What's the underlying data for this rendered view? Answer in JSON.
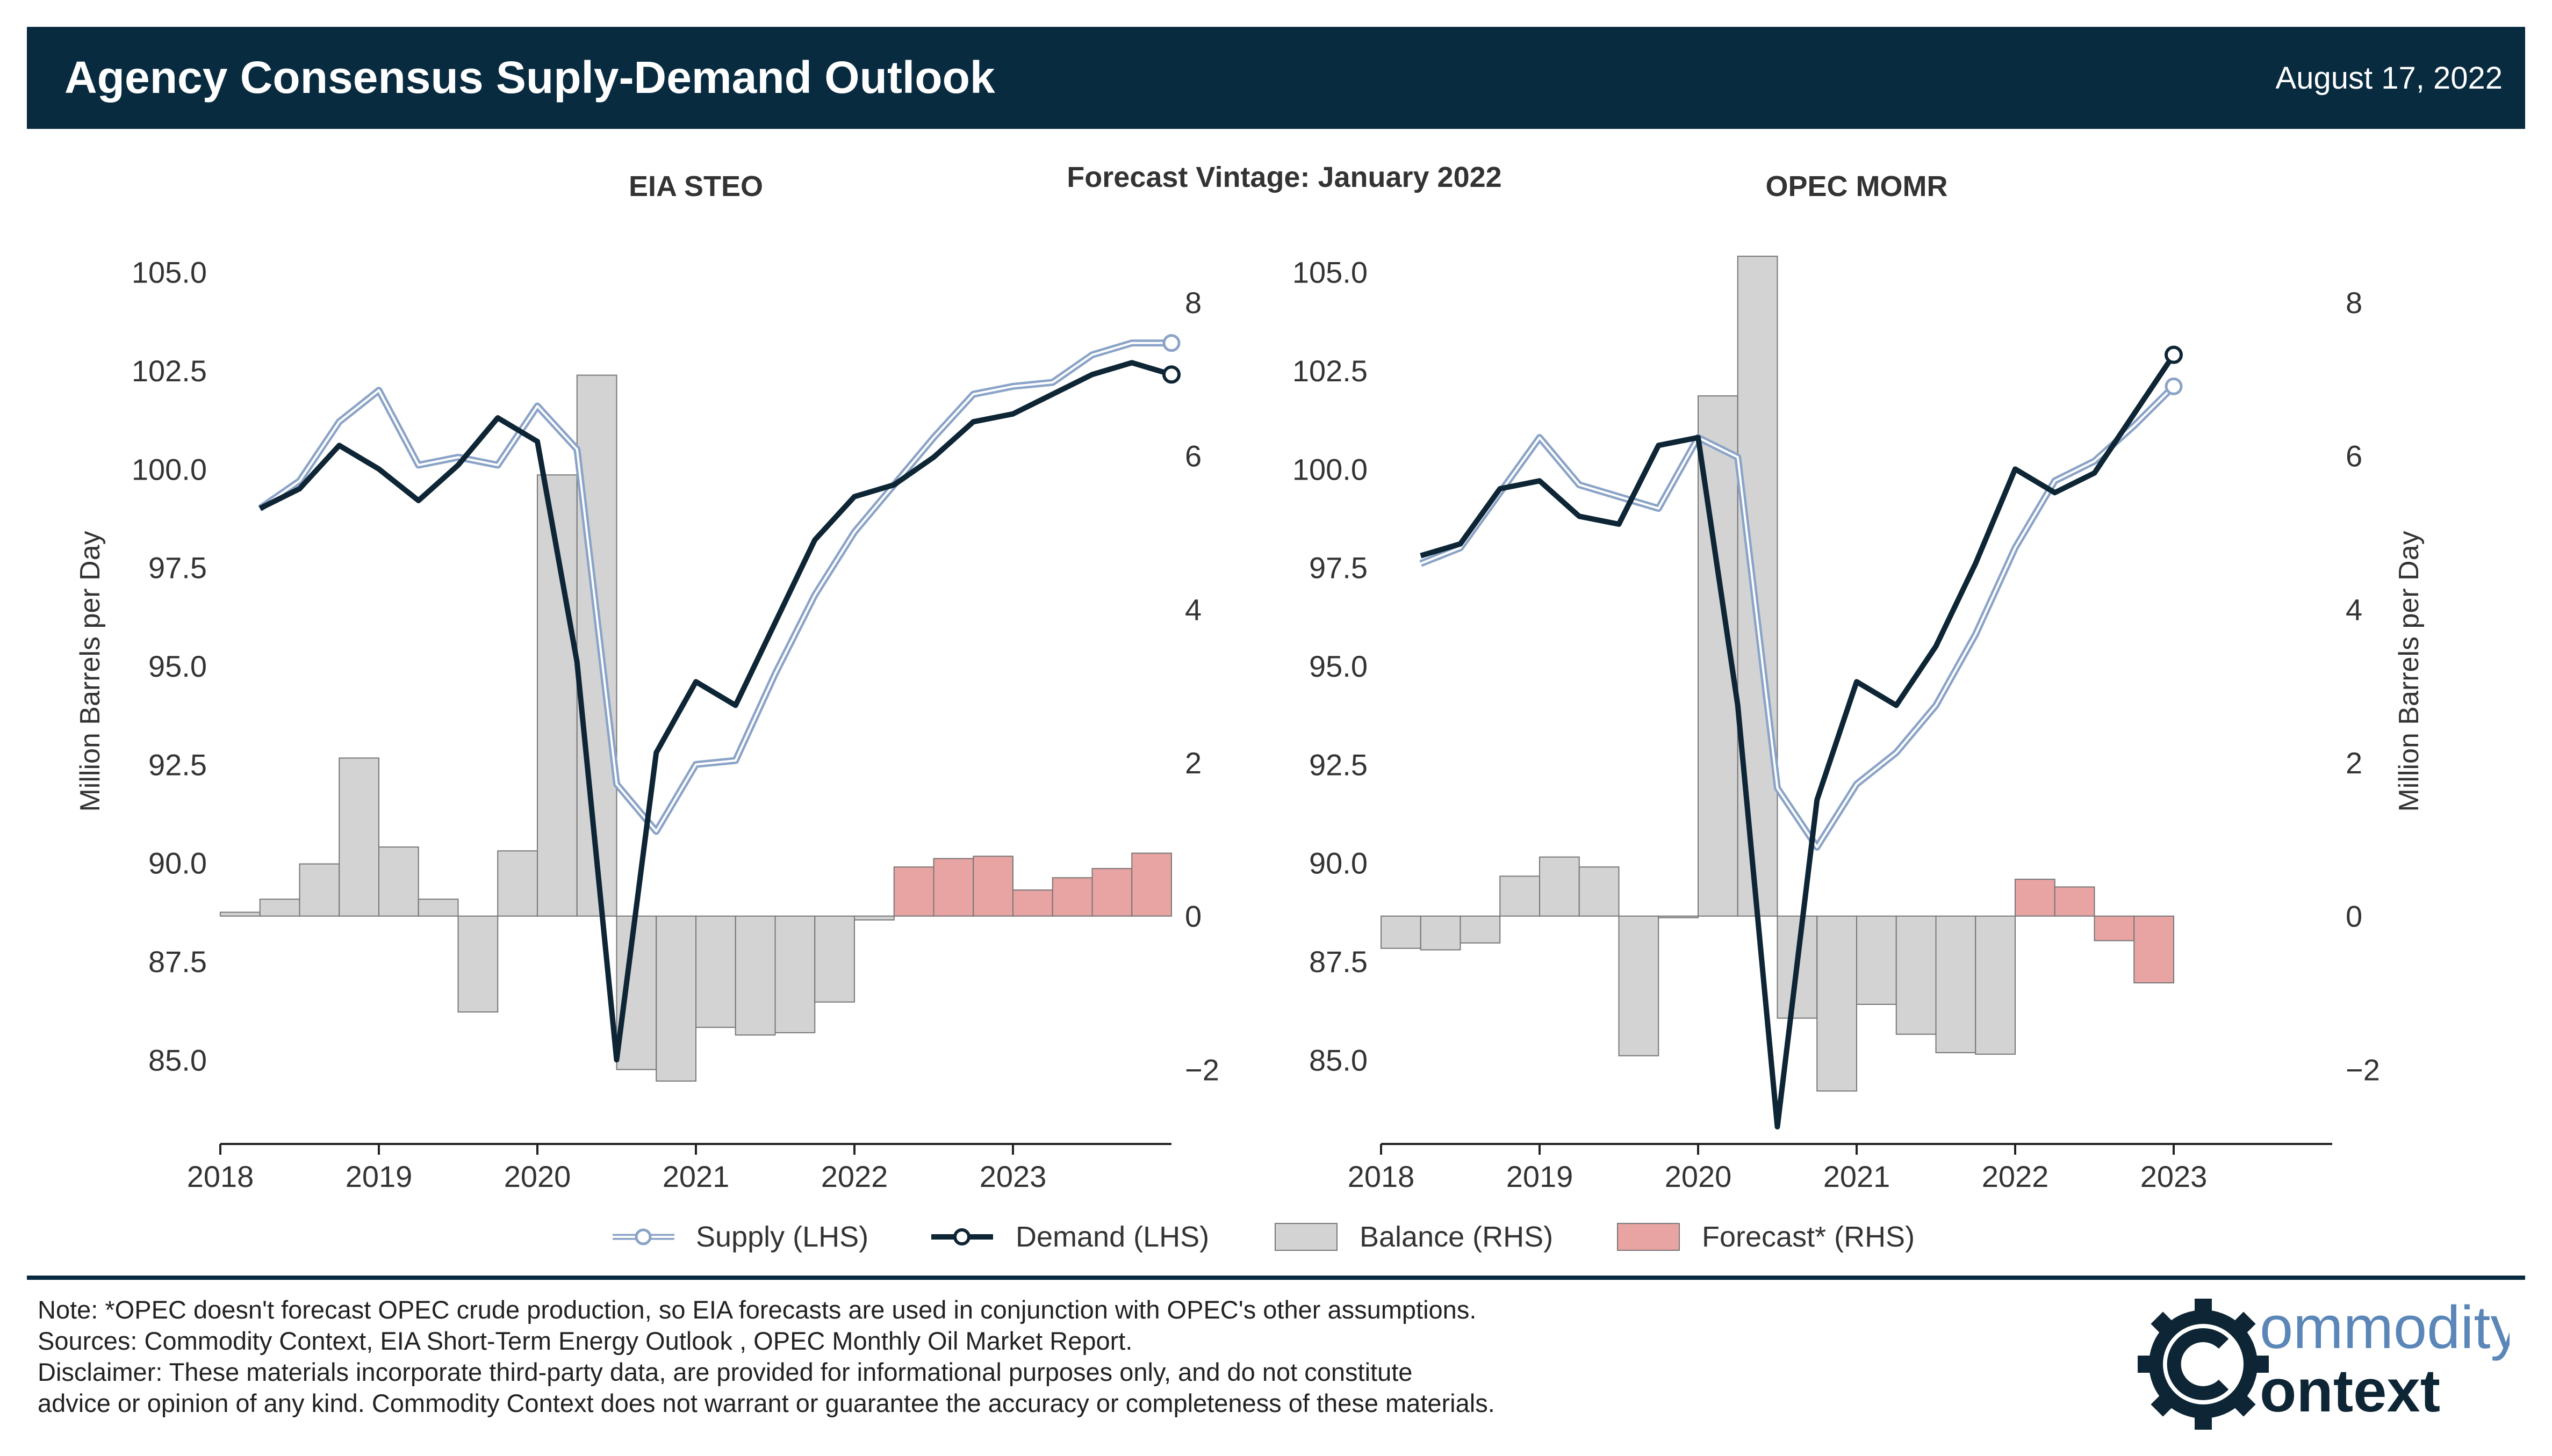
{
  "header": {
    "title": "Agency Consensus Suply-Demand Outlook",
    "date": "August 17, 2022"
  },
  "figure_subtitle": "Forecast Vintage: January 2022",
  "legend": {
    "supply": "Supply (LHS)",
    "demand": "Demand (LHS)",
    "balance": "Balance (RHS)",
    "forecast": "Forecast* (RHS)"
  },
  "footer": {
    "note": "Note: *OPEC doesn't forecast OPEC crude production, so EIA forecasts are used in conjunction with OPEC's other assumptions.",
    "sources": "Sources: Commodity Context, EIA Short-Term Energy Outlook , OPEC Monthly Oil Market Report.",
    "disclaimer_1": "Disclaimer: These materials incorporate third-party data, are provided for informational purposes only, and do not constitute",
    "disclaimer_2": "advice or opinion of any kind. Commodity Context does not warrant or guarantee the accuracy or completeness of these materials."
  },
  "logo": {
    "line1": "ommodity",
    "line2": "ontext",
    "icon": "gear-c-icon"
  },
  "colors": {
    "header_bg": "#082b40",
    "supply": "#8aa3c7",
    "demand": "#0d2535",
    "balance": "#d3d3d3",
    "forecast": "#e8a3a3",
    "logo_blue": "#5b86b8"
  },
  "chart_data": [
    {
      "type": "bar+line",
      "title": "EIA STEO",
      "xlabel": "",
      "ylabel": "Million Barrels per Day",
      "y2label": "",
      "xlim": [
        2018.0,
        2024.0
      ],
      "ylim": [
        83.0,
        105.5
      ],
      "y2lim": [
        -2.9,
        8.65
      ],
      "xticks": [
        "2018",
        "2019",
        "2020",
        "2021",
        "2022",
        "2023"
      ],
      "yticks": [
        "85.0",
        "87.5",
        "90.0",
        "92.5",
        "95.0",
        "97.5",
        "100.0",
        "102.5",
        "105.0"
      ],
      "y2ticks": [
        "−2",
        "0",
        "2",
        "4",
        "6",
        "8"
      ],
      "series": [
        {
          "name": "Supply (LHS)",
          "axis": "left",
          "x": [
            2018.25,
            2018.5,
            2018.75,
            2019.0,
            2019.25,
            2019.5,
            2019.75,
            2020.0,
            2020.25,
            2020.5,
            2020.75,
            2021.0,
            2021.25,
            2021.5,
            2021.75,
            2022.0,
            2022.25,
            2022.5,
            2022.75,
            2023.0,
            2023.25,
            2023.5,
            2023.75,
            2024.0
          ],
          "values": [
            99.0,
            99.7,
            101.2,
            102.0,
            100.1,
            100.3,
            100.1,
            101.6,
            100.5,
            92.0,
            90.8,
            92.5,
            92.6,
            94.8,
            96.8,
            98.4,
            99.6,
            100.8,
            101.9,
            102.1,
            102.2,
            102.9,
            103.2,
            103.2
          ]
        },
        {
          "name": "Demand (LHS)",
          "axis": "left",
          "x": [
            2018.25,
            2018.5,
            2018.75,
            2019.0,
            2019.25,
            2019.5,
            2019.75,
            2020.0,
            2020.25,
            2020.5,
            2020.75,
            2021.0,
            2021.25,
            2021.5,
            2021.75,
            2022.0,
            2022.25,
            2022.5,
            2022.75,
            2023.0,
            2023.25,
            2023.5,
            2023.75,
            2024.0
          ],
          "values": [
            99.0,
            99.5,
            100.6,
            100.0,
            99.2,
            100.1,
            101.3,
            100.7,
            95.1,
            85.0,
            92.8,
            94.6,
            94.0,
            96.1,
            98.2,
            99.3,
            99.6,
            100.3,
            101.2,
            101.4,
            101.9,
            102.4,
            102.7,
            102.4
          ]
        },
        {
          "name": "Balance (RHS)",
          "axis": "right",
          "x": [
            2018.0,
            2018.25,
            2018.5,
            2018.75,
            2019.0,
            2019.25,
            2019.5,
            2019.75,
            2020.0,
            2020.25,
            2020.5,
            2020.75,
            2021.0,
            2021.25,
            2021.5,
            2021.75,
            2022.0
          ],
          "values": [
            0.05,
            0.22,
            0.68,
            2.06,
            0.9,
            0.22,
            -1.25,
            0.85,
            5.75,
            7.05,
            -2.0,
            -2.15,
            -1.45,
            -1.55,
            -1.52,
            -1.12,
            -0.05
          ]
        },
        {
          "name": "Forecast* (RHS)",
          "axis": "right",
          "x": [
            2022.25,
            2022.5,
            2022.75,
            2023.0,
            2023.25,
            2023.5,
            2023.75
          ],
          "values": [
            0.64,
            0.75,
            0.78,
            0.34,
            0.5,
            0.62,
            0.82
          ]
        }
      ]
    },
    {
      "type": "bar+line",
      "title": "OPEC MOMR",
      "xlabel": "",
      "ylabel": "",
      "y2label": "Million Barrels per Day",
      "xlim": [
        2018.0,
        2024.0
      ],
      "ylim": [
        83.0,
        105.5
      ],
      "y2lim": [
        -2.9,
        8.65
      ],
      "xticks": [
        "2018",
        "2019",
        "2020",
        "2021",
        "2022",
        "2023"
      ],
      "yticks": [
        "85.0",
        "87.5",
        "90.0",
        "92.5",
        "95.0",
        "97.5",
        "100.0",
        "102.5",
        "105.0"
      ],
      "y2ticks": [
        "−2",
        "0",
        "2",
        "4",
        "6",
        "8"
      ],
      "series": [
        {
          "name": "Supply (LHS)",
          "axis": "left",
          "x": [
            2018.25,
            2018.5,
            2018.75,
            2019.0,
            2019.25,
            2019.5,
            2019.75,
            2020.0,
            2020.25,
            2020.5,
            2020.75,
            2021.0,
            2021.25,
            2021.5,
            2021.75,
            2022.0,
            2022.25,
            2022.5,
            2022.75,
            2023.0
          ],
          "values": [
            97.6,
            98.0,
            99.4,
            100.8,
            99.6,
            99.3,
            99.0,
            100.8,
            100.3,
            91.9,
            90.4,
            92.0,
            92.8,
            94.0,
            95.8,
            98.0,
            99.7,
            100.2,
            101.1,
            102.1
          ]
        },
        {
          "name": "Demand (LHS)",
          "axis": "left",
          "x": [
            2018.25,
            2018.5,
            2018.75,
            2019.0,
            2019.25,
            2019.5,
            2019.75,
            2020.0,
            2020.25,
            2020.5,
            2020.75,
            2021.0,
            2021.25,
            2021.5,
            2021.75,
            2022.0,
            2022.25,
            2022.5,
            2022.75,
            2023.0
          ],
          "values": [
            97.8,
            98.1,
            99.5,
            99.7,
            98.8,
            98.6,
            100.6,
            100.8,
            94.0,
            83.3,
            91.6,
            94.6,
            94.0,
            95.5,
            97.6,
            100.0,
            99.4,
            99.9,
            101.4,
            102.9
          ]
        },
        {
          "name": "Balance (RHS)",
          "axis": "right",
          "x": [
            2018.0,
            2018.25,
            2018.5,
            2018.75,
            2019.0,
            2019.25,
            2019.5,
            2019.75,
            2020.0,
            2020.25,
            2020.5,
            2020.75,
            2021.0,
            2021.25,
            2021.5,
            2021.75
          ],
          "values": [
            -0.42,
            -0.44,
            -0.35,
            0.52,
            0.77,
            0.64,
            -1.82,
            -0.02,
            6.78,
            8.6,
            -1.33,
            -2.28,
            -1.15,
            -1.54,
            -1.78,
            -1.8
          ]
        },
        {
          "name": "Forecast* (RHS)",
          "axis": "right",
          "x": [
            2022.0,
            2022.25,
            2022.5,
            2022.75
          ],
          "values": [
            0.48,
            0.38,
            -0.32,
            -0.87
          ]
        }
      ]
    }
  ]
}
